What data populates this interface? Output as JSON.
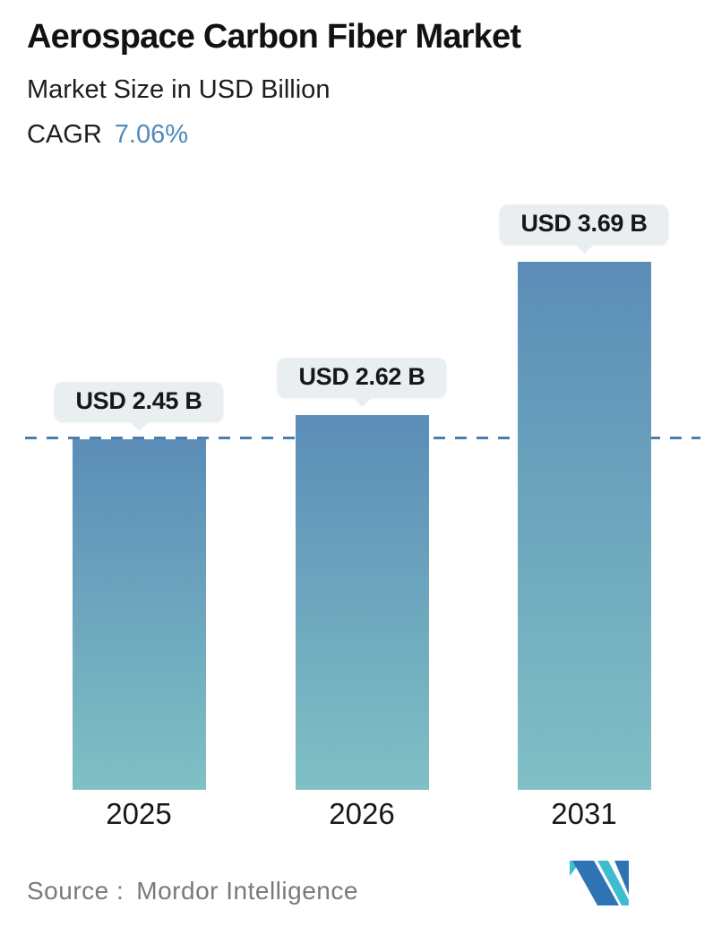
{
  "header": {
    "title": "Aerospace Carbon Fiber Market",
    "subtitle": "Market Size in USD Billion",
    "cagr_label": "CAGR",
    "cagr_value": "7.06%"
  },
  "chart_data": {
    "type": "bar",
    "title": "Aerospace Carbon Fiber Market",
    "subtitle": "Market Size in USD Billion",
    "unit": "USD Billion",
    "categories": [
      "2025",
      "2026",
      "2031"
    ],
    "values": [
      2.45,
      2.62,
      3.69
    ],
    "bar_labels": [
      "USD 2.45 B",
      "USD 2.62 B",
      "USD 3.69 B"
    ],
    "cagr": "7.06%",
    "reference_line": {
      "value": 2.45,
      "style": "dashed"
    },
    "ylim": [
      0,
      3.8
    ],
    "grid": false,
    "legend": false,
    "bar_gradient": [
      "#5b8db7",
      "#7fc0c5"
    ]
  },
  "footer": {
    "source_label": "Source :",
    "source_value": "Mordor Intelligence",
    "logo": "mordor-intelligence-logo"
  },
  "colors": {
    "accent_blue": "#5289b8",
    "bar_top": "#5b8db7",
    "bar_bottom": "#7fc0c5",
    "tooltip_bg": "#e9eef1",
    "dashed_line": "#4d7fad",
    "text_gray": "#7a7a7a",
    "logo_blue": "#2e74b5",
    "logo_teal": "#3fbdd0"
  }
}
